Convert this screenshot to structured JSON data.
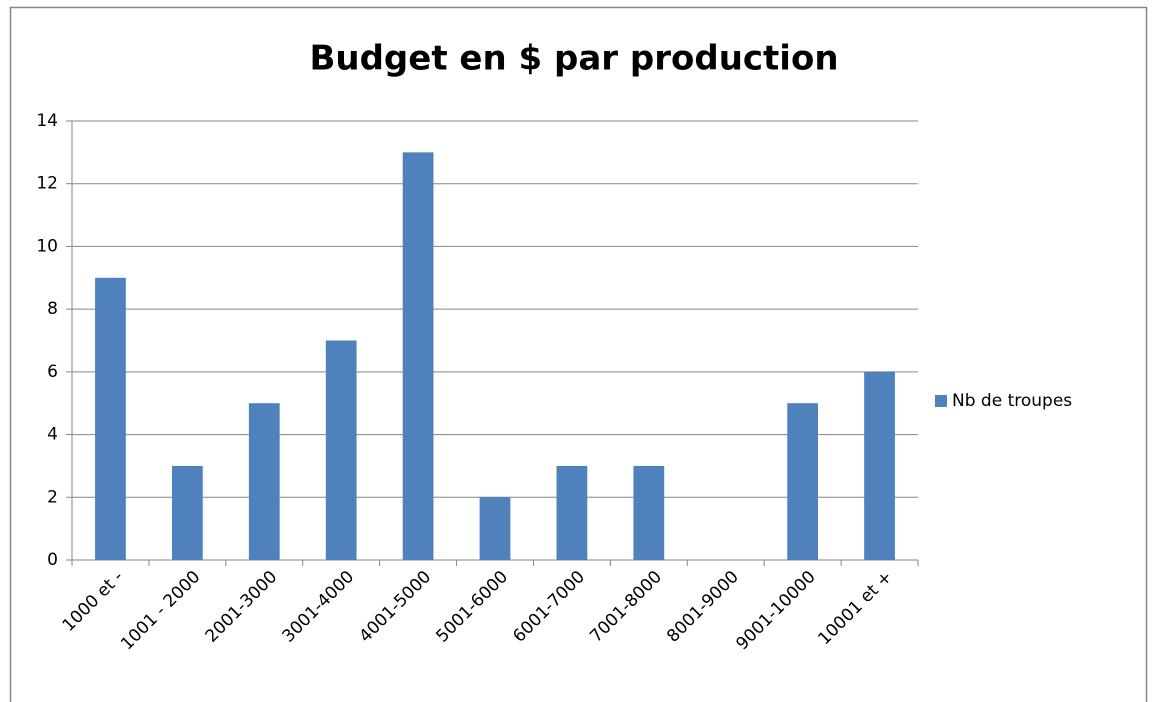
{
  "chart_data": {
    "type": "bar",
    "title": "Budget en $ par production",
    "categories": [
      "1000 et -",
      "1001 - 2000",
      "2001-3000",
      "3001-4000",
      "4001-5000",
      "5001-6000",
      "6001-7000",
      "7001-8000",
      "8001-9000",
      "9001-10000",
      "10001 et +"
    ],
    "series": [
      {
        "name": "Nb de troupes",
        "color": "#4f81bd",
        "values": [
          9,
          3,
          5,
          7,
          13,
          2,
          3,
          3,
          0,
          5,
          6
        ]
      }
    ],
    "ylim": [
      0,
      14
    ],
    "yticks": [
      0,
      2,
      4,
      6,
      8,
      10,
      12,
      14
    ],
    "grid": true,
    "legend": "right"
  }
}
